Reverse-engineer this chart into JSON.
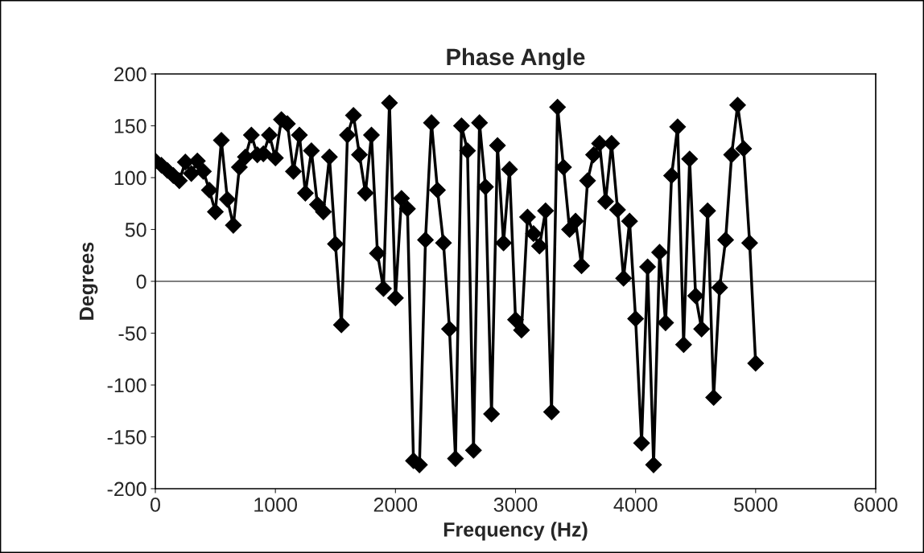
{
  "chart_data": {
    "type": "line",
    "title": "Phase Angle",
    "xlabel": "Frequency (Hz)",
    "ylabel": "Degrees",
    "x": [
      0,
      50,
      100,
      150,
      200,
      250,
      300,
      350,
      400,
      450,
      500,
      550,
      600,
      650,
      700,
      750,
      800,
      850,
      900,
      950,
      1000,
      1050,
      1100,
      1150,
      1200,
      1250,
      1300,
      1350,
      1400,
      1450,
      1500,
      1550,
      1600,
      1650,
      1700,
      1750,
      1800,
      1850,
      1900,
      1950,
      2000,
      2050,
      2100,
      2150,
      2200,
      2250,
      2300,
      2350,
      2400,
      2450,
      2500,
      2550,
      2600,
      2650,
      2700,
      2750,
      2800,
      2850,
      2900,
      2950,
      3000,
      3050,
      3100,
      3150,
      3200,
      3250,
      3300,
      3350,
      3400,
      3450,
      3500,
      3550,
      3600,
      3650,
      3700,
      3750,
      3800,
      3850,
      3900,
      3950,
      4000,
      4050,
      4100,
      4150,
      4200,
      4250,
      4300,
      4350,
      4400,
      4450,
      4500,
      4550,
      4600,
      4650,
      4700,
      4750,
      4800,
      4850,
      4900,
      4950,
      5000
    ],
    "series": [
      {
        "color": "#000000",
        "values": [
          116,
          112,
          107,
          102,
          97,
          115,
          104,
          116,
          106,
          88,
          67,
          136,
          79,
          54,
          110,
          120,
          141,
          122,
          123,
          141,
          119,
          156,
          152,
          106,
          141,
          85,
          126,
          74,
          67,
          120,
          36,
          -42,
          141,
          160,
          122,
          85,
          141,
          27,
          -7,
          172,
          -16,
          80,
          70,
          -173,
          -177,
          40,
          153,
          88,
          37,
          -46,
          -171,
          150,
          126,
          -163,
          153,
          91,
          -128,
          131,
          37,
          108,
          -37,
          -47,
          62,
          46,
          34,
          68,
          -126,
          168,
          110,
          50,
          58,
          15,
          97,
          122,
          133,
          77,
          133,
          69,
          3,
          58,
          -36,
          -156,
          14,
          -177,
          28,
          -40,
          102,
          149,
          -61,
          118,
          -14,
          -46,
          68,
          -112,
          -6,
          40,
          122,
          170,
          128,
          37,
          -79
        ]
      }
    ],
    "xlim": [
      0,
      6000
    ],
    "xticks": [
      0,
      1000,
      2000,
      3000,
      4000,
      5000,
      6000
    ],
    "ylim": [
      -200,
      200
    ],
    "yticks": [
      -200,
      -150,
      -100,
      -50,
      0,
      50,
      100,
      150,
      200
    ],
    "ref_lines": [
      {
        "axis": "y",
        "value": 0,
        "color": "#000000"
      }
    ],
    "marker": "diamond",
    "line_style": "solid",
    "grid": false,
    "legend": false
  }
}
